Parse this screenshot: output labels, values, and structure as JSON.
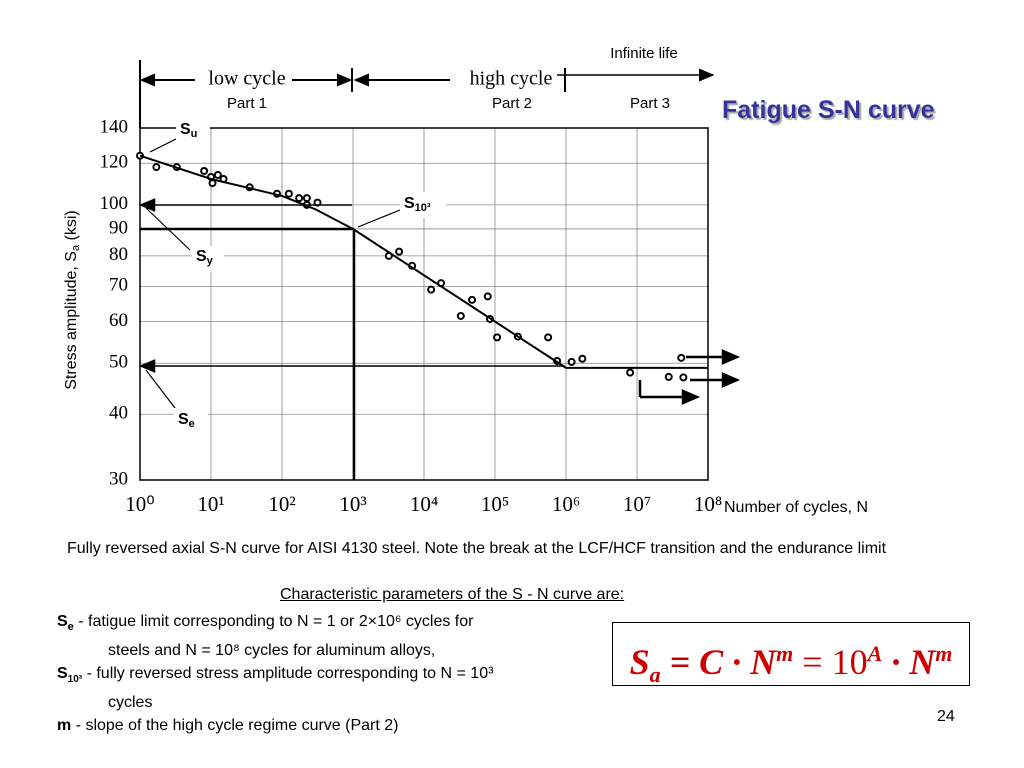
{
  "title": "Fatigue S-N curve",
  "chart_data": {
    "type": "scatter",
    "log_x": true,
    "log_y": true,
    "grid": true,
    "xlim": [
      1,
      100000000
    ],
    "xticks": [
      {
        "value": 1,
        "label": "10⁰"
      },
      {
        "value": 10,
        "label": "10¹"
      },
      {
        "value": 100,
        "label": "10²"
      },
      {
        "value": 1000,
        "label": "10³"
      },
      {
        "value": 10000,
        "label": "10⁴"
      },
      {
        "value": 100000,
        "label": "10⁵"
      },
      {
        "value": 1000000,
        "label": "10⁶"
      },
      {
        "value": 10000000,
        "label": "10⁷"
      },
      {
        "value": 100000000,
        "label": "10⁸"
      }
    ],
    "ylim": [
      30,
      140
    ],
    "yticks": [
      30,
      40,
      50,
      60,
      70,
      80,
      90,
      100,
      120,
      140
    ],
    "x_label": "Number of cycles, N",
    "y_label": [
      "Stress amplitude, S",
      "a",
      " (ksi)"
    ],
    "regions": [
      "low cycle",
      "high cycle",
      "Infinite life"
    ],
    "parts": [
      "Part 1",
      "Part 2",
      "Part 3"
    ],
    "annotations": [
      [
        "S",
        "u"
      ],
      [
        "S",
        "10³"
      ],
      [
        "S",
        "y"
      ],
      [
        "S",
        "e"
      ]
    ],
    "series": [
      {
        "color": "#000000",
        "x": [
          1,
          1.7,
          3.3,
          8,
          10,
          10.5,
          12.5,
          15,
          35,
          85,
          125,
          174,
          224,
          224,
          316,
          3200,
          4460,
          6800,
          12600,
          17400,
          33000,
          47500,
          79000,
          85000,
          107000,
          210000,
          560000,
          750000,
          1200000,
          1700000,
          8000000,
          28000000,
          45000000,
          42000000
        ],
        "values": [
          124,
          118,
          118,
          116,
          113,
          110,
          114,
          112,
          108,
          105,
          105,
          103,
          100,
          103,
          101,
          80,
          81.5,
          76.6,
          69,
          71,
          61.5,
          66,
          67,
          60.7,
          56,
          56.2,
          56,
          50.5,
          50.3,
          51,
          48,
          47.1,
          47,
          51.2
        ]
      },
      {
        "color": "#000000",
        "x": [
          1,
          10,
          100,
          300,
          1000,
          1000000,
          100000000
        ],
        "values": [
          124,
          112,
          104,
          98,
          90,
          49,
          49
        ]
      }
    ]
  },
  "caption": "Fully reversed axial S-N curve for AISI 4130 steel. Note the break at the LCF/HCF transition and the endurance limit",
  "params_heading": "Characteristic parameters of the S - N curve are:",
  "definitions": [
    {
      "symbol": [
        "S",
        "e"
      ],
      "text": " -   fatigue limit corresponding to N = 1 or 2×10⁶ cycles for",
      "cont": "steels and N = 10⁸ cycles for aluminum alloys,"
    },
    {
      "symbol": [
        "S",
        "10³"
      ],
      "text": " - fully reversed stress amplitude corresponding to N = 10³",
      "cont": "cycles"
    },
    {
      "symbol": [
        "m",
        ""
      ],
      "text": " -    slope of the high cycle regime curve (Part 2)",
      "cont": ""
    }
  ],
  "formula": [
    "S",
    "a",
    " = C · N",
    "m",
    " = 10",
    "A",
    " · N",
    "m"
  ],
  "page_number": "24"
}
